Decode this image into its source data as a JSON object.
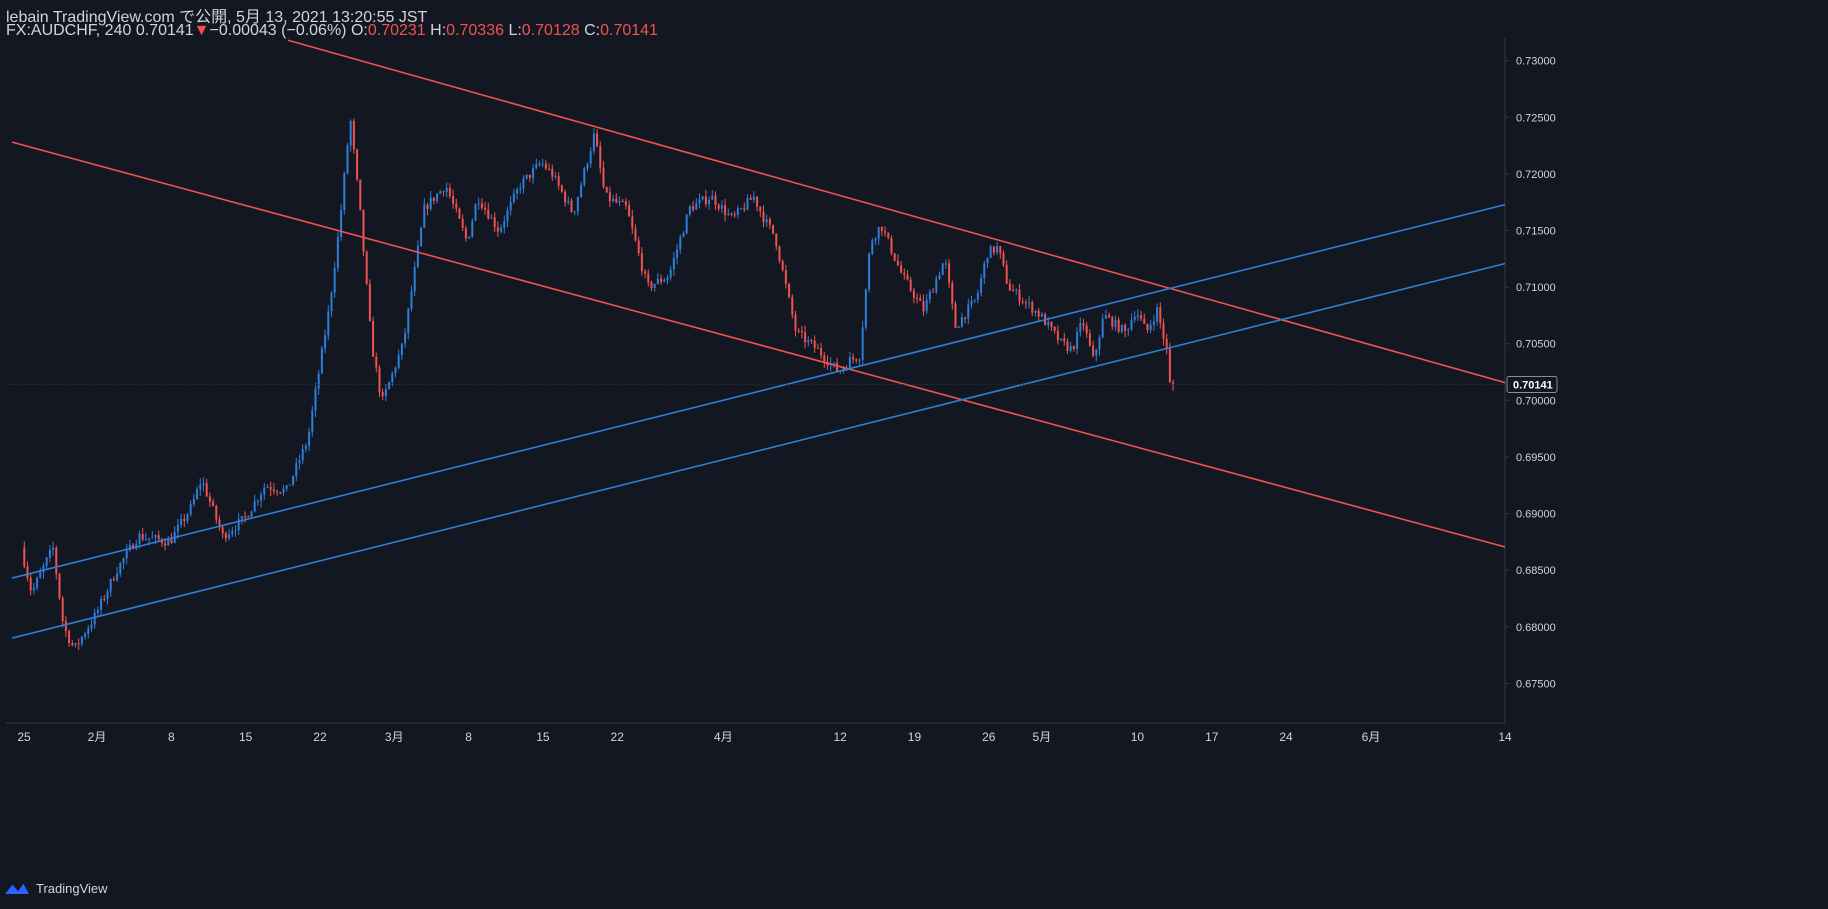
{
  "header": {
    "line1": "lebain TradingView.com で公開, 5月 13, 2021 13:20:55 JST",
    "symbol": "FX:AUDCHF, 240",
    "last": "0.70141",
    "arrow": "▼",
    "change": "−0.00043 (−0.06%)",
    "o_label": "O:",
    "o_value": "0.70231",
    "h_label": "H:",
    "h_value": "0.70336",
    "l_label": "L:",
    "l_value": "0.70128",
    "c_label": "C:",
    "c_value": "0.70141"
  },
  "footer": {
    "brand": "TradingView"
  },
  "colors": {
    "background": "#131722",
    "up": "#2962ff",
    "down": "#ef5350",
    "blue_line": "#2f7ed8",
    "red_line": "#ef5350",
    "axis_text": "#d1d4dc",
    "axis_line": "#363a45"
  },
  "chart_data": {
    "type": "candlestick",
    "title": "FX:AUDCHF, 240",
    "ylim": [
      0.6715,
      0.732
    ],
    "y_ticks": [
      "0.73000",
      "0.72500",
      "0.72000",
      "0.71500",
      "0.71000",
      "0.70500",
      "0.70000",
      "0.69500",
      "0.69000",
      "0.68500",
      "0.68000",
      "0.67500"
    ],
    "last_price_label": "0.70141",
    "x_ticks": [
      "25",
      "2月",
      "8",
      "15",
      "22",
      "3月",
      "8",
      "15",
      "22",
      "4月",
      "12",
      "19",
      "26",
      "5月",
      "10",
      "17",
      "24",
      "6月",
      "14"
    ],
    "price_path": [
      [
        "2021-01-25",
        0.687
      ],
      [
        "2021-01-26",
        0.683
      ],
      [
        "2021-01-27",
        0.685
      ],
      [
        "2021-01-28",
        0.687
      ],
      [
        "2021-01-29",
        0.68
      ],
      [
        "2021-01-30",
        0.678
      ],
      [
        "2021-02-01",
        0.681
      ],
      [
        "2021-02-02",
        0.683
      ],
      [
        "2021-02-03",
        0.685
      ],
      [
        "2021-02-05",
        0.688
      ],
      [
        "2021-02-08",
        0.6875
      ],
      [
        "2021-02-10",
        0.6905
      ],
      [
        "2021-02-11",
        0.693
      ],
      [
        "2021-02-13",
        0.688
      ],
      [
        "2021-02-15",
        0.6895
      ],
      [
        "2021-02-17",
        0.6925
      ],
      [
        "2021-02-19",
        0.692
      ],
      [
        "2021-02-21",
        0.6965
      ],
      [
        "2021-02-23",
        0.708
      ],
      [
        "2021-02-24",
        0.7155
      ],
      [
        "2021-02-25",
        0.725
      ],
      [
        "2021-02-26",
        0.716
      ],
      [
        "2021-02-27",
        0.705
      ],
      [
        "2021-02-28",
        0.6998
      ],
      [
        "2021-03-02",
        0.705
      ],
      [
        "2021-03-04",
        0.717
      ],
      [
        "2021-03-06",
        0.719
      ],
      [
        "2021-03-08",
        0.714
      ],
      [
        "2021-03-09",
        0.718
      ],
      [
        "2021-03-11",
        0.715
      ],
      [
        "2021-03-13",
        0.719
      ],
      [
        "2021-03-15",
        0.721
      ],
      [
        "2021-03-16",
        0.72
      ],
      [
        "2021-03-18",
        0.7165
      ],
      [
        "2021-03-20",
        0.7235
      ],
      [
        "2021-03-21",
        0.718
      ],
      [
        "2021-03-23",
        0.717
      ],
      [
        "2021-03-25",
        0.71
      ],
      [
        "2021-03-27",
        0.711
      ],
      [
        "2021-03-29",
        0.717
      ],
      [
        "2021-03-31",
        0.718
      ],
      [
        "2021-04-02",
        0.716
      ],
      [
        "2021-04-04",
        0.718
      ],
      [
        "2021-04-05",
        0.716
      ],
      [
        "2021-04-06",
        0.7145
      ],
      [
        "2021-04-08",
        0.706
      ],
      [
        "2021-04-10",
        0.7045
      ],
      [
        "2021-04-12",
        0.7025
      ],
      [
        "2021-04-13",
        0.7035
      ],
      [
        "2021-04-14",
        0.704
      ],
      [
        "2021-04-15",
        0.714
      ],
      [
        "2021-04-16",
        0.7155
      ],
      [
        "2021-04-18",
        0.711
      ],
      [
        "2021-04-20",
        0.708
      ],
      [
        "2021-04-22",
        0.7125
      ],
      [
        "2021-04-23",
        0.7065
      ],
      [
        "2021-04-25",
        0.709
      ],
      [
        "2021-04-26",
        0.713
      ],
      [
        "2021-04-27",
        0.7135
      ],
      [
        "2021-04-28",
        0.71
      ],
      [
        "2021-05-01",
        0.7075
      ],
      [
        "2021-05-03",
        0.705
      ],
      [
        "2021-05-04",
        0.7045
      ],
      [
        "2021-05-05",
        0.707
      ],
      [
        "2021-05-06",
        0.7035
      ],
      [
        "2021-05-07",
        0.7075
      ],
      [
        "2021-05-09",
        0.706
      ],
      [
        "2021-05-10",
        0.708
      ],
      [
        "2021-05-11",
        0.706
      ],
      [
        "2021-05-12",
        0.708
      ],
      [
        "2021-05-13",
        0.704
      ],
      [
        "2021-05-13",
        0.70141
      ]
    ],
    "trendlines": [
      {
        "color": "red",
        "points": [
          [
            "2021-02-19",
            0.7318
          ],
          [
            "2021-06-15",
            0.7012
          ]
        ]
      },
      {
        "color": "red",
        "points": [
          [
            "2021-01-24",
            0.7228
          ],
          [
            "2021-06-15",
            0.6867
          ]
        ]
      },
      {
        "color": "blue",
        "points": [
          [
            "2021-01-24",
            0.6843
          ],
          [
            "2021-06-15",
            0.7176
          ]
        ]
      },
      {
        "color": "blue",
        "points": [
          [
            "2021-01-24",
            0.679
          ],
          [
            "2021-06-15",
            0.7124
          ]
        ]
      }
    ]
  }
}
